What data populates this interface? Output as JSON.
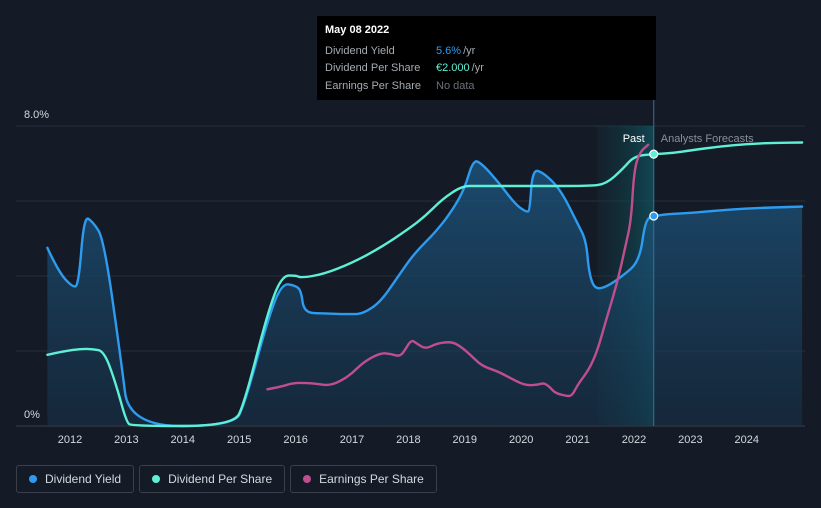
{
  "chart_data": {
    "type": "line",
    "y_axis": {
      "top_label": "8.0%",
      "bottom_label": "0%",
      "ylim": [
        0,
        8
      ]
    },
    "x_axis": {
      "ticks": [
        "2012",
        "2013",
        "2014",
        "2015",
        "2016",
        "2017",
        "2018",
        "2019",
        "2020",
        "2021",
        "2022",
        "2023",
        "2024"
      ]
    },
    "regions": {
      "past_label": "Past",
      "forecast_label": "Analysts Forecasts"
    },
    "series": [
      {
        "name": "Dividend Yield",
        "color": "#2d9cf0",
        "points": [
          [
            2011.6,
            4.75
          ],
          [
            2011.8,
            4.1
          ],
          [
            2012.05,
            3.7
          ],
          [
            2012.15,
            3.75
          ],
          [
            2012.25,
            5.6
          ],
          [
            2012.4,
            5.45
          ],
          [
            2012.6,
            5.0
          ],
          [
            2012.9,
            1.8
          ],
          [
            2013.05,
            0.0
          ],
          [
            2014.9,
            0.0
          ],
          [
            2015.1,
            0.6
          ],
          [
            2015.5,
            2.8
          ],
          [
            2015.75,
            3.8
          ],
          [
            2016.0,
            3.75
          ],
          [
            2016.1,
            3.6
          ],
          [
            2016.15,
            3.02
          ],
          [
            2016.5,
            3.0
          ],
          [
            2017.0,
            2.98
          ],
          [
            2017.2,
            3.0
          ],
          [
            2017.5,
            3.3
          ],
          [
            2017.8,
            3.95
          ],
          [
            2018.1,
            4.6
          ],
          [
            2018.5,
            5.2
          ],
          [
            2018.8,
            5.8
          ],
          [
            2019.0,
            6.35
          ],
          [
            2019.15,
            7.1
          ],
          [
            2019.3,
            7.0
          ],
          [
            2019.6,
            6.5
          ],
          [
            2019.9,
            5.9
          ],
          [
            2020.1,
            5.7
          ],
          [
            2020.15,
            5.75
          ],
          [
            2020.2,
            6.85
          ],
          [
            2020.4,
            6.75
          ],
          [
            2020.7,
            6.3
          ],
          [
            2021.0,
            5.4
          ],
          [
            2021.15,
            4.95
          ],
          [
            2021.2,
            4.1
          ],
          [
            2021.3,
            3.65
          ],
          [
            2021.5,
            3.7
          ],
          [
            2021.8,
            4.0
          ],
          [
            2022.1,
            4.4
          ],
          [
            2022.2,
            5.5
          ],
          [
            2022.35,
            5.6
          ],
          [
            2022.6,
            5.65
          ],
          [
            2023.0,
            5.68
          ],
          [
            2023.5,
            5.75
          ],
          [
            2024.0,
            5.8
          ],
          [
            2024.5,
            5.83
          ],
          [
            2024.98,
            5.85
          ]
        ],
        "fill": true
      },
      {
        "name": "Dividend Per Share",
        "color": "#5ef0d6",
        "points": [
          [
            2011.6,
            1.9
          ],
          [
            2011.9,
            2.0
          ],
          [
            2012.2,
            2.06
          ],
          [
            2012.4,
            2.05
          ],
          [
            2012.6,
            2.0
          ],
          [
            2012.8,
            1.2
          ],
          [
            2013.0,
            0.1
          ],
          [
            2013.1,
            0.0
          ],
          [
            2014.9,
            0.0
          ],
          [
            2015.1,
            0.65
          ],
          [
            2015.5,
            3.0
          ],
          [
            2015.75,
            4.0
          ],
          [
            2016.0,
            4.02
          ],
          [
            2016.1,
            3.95
          ],
          [
            2016.5,
            4.05
          ],
          [
            2017.0,
            4.35
          ],
          [
            2017.5,
            4.75
          ],
          [
            2018.0,
            5.25
          ],
          [
            2018.3,
            5.6
          ],
          [
            2018.6,
            6.05
          ],
          [
            2018.95,
            6.4
          ],
          [
            2019.2,
            6.4
          ],
          [
            2020.0,
            6.4
          ],
          [
            2020.5,
            6.4
          ],
          [
            2021.2,
            6.4
          ],
          [
            2021.5,
            6.45
          ],
          [
            2021.8,
            6.85
          ],
          [
            2022.0,
            7.2
          ],
          [
            2022.35,
            7.25
          ],
          [
            2022.7,
            7.28
          ],
          [
            2023.0,
            7.35
          ],
          [
            2023.5,
            7.45
          ],
          [
            2024.0,
            7.52
          ],
          [
            2024.5,
            7.55
          ],
          [
            2024.98,
            7.56
          ]
        ],
        "fill": false
      },
      {
        "name": "Earnings Per Share",
        "color": "#c04e8e",
        "points": [
          [
            2015.5,
            0.98
          ],
          [
            2015.75,
            1.05
          ],
          [
            2015.95,
            1.15
          ],
          [
            2016.2,
            1.15
          ],
          [
            2016.4,
            1.12
          ],
          [
            2016.6,
            1.08
          ],
          [
            2016.8,
            1.2
          ],
          [
            2017.0,
            1.4
          ],
          [
            2017.2,
            1.7
          ],
          [
            2017.5,
            1.95
          ],
          [
            2017.7,
            1.92
          ],
          [
            2017.85,
            1.85
          ],
          [
            2017.95,
            2.05
          ],
          [
            2018.05,
            2.3
          ],
          [
            2018.15,
            2.2
          ],
          [
            2018.3,
            2.05
          ],
          [
            2018.5,
            2.2
          ],
          [
            2018.75,
            2.25
          ],
          [
            2018.9,
            2.15
          ],
          [
            2019.1,
            1.9
          ],
          [
            2019.3,
            1.6
          ],
          [
            2019.6,
            1.45
          ],
          [
            2019.9,
            1.2
          ],
          [
            2020.1,
            1.08
          ],
          [
            2020.3,
            1.1
          ],
          [
            2020.4,
            1.15
          ],
          [
            2020.5,
            1.05
          ],
          [
            2020.6,
            0.88
          ],
          [
            2020.8,
            0.8
          ],
          [
            2020.9,
            0.8
          ],
          [
            2021.0,
            1.1
          ],
          [
            2021.2,
            1.5
          ],
          [
            2021.35,
            2.0
          ],
          [
            2021.5,
            2.8
          ],
          [
            2021.7,
            3.8
          ],
          [
            2021.85,
            4.8
          ],
          [
            2021.95,
            5.5
          ],
          [
            2022.0,
            6.8
          ],
          [
            2022.1,
            7.3
          ],
          [
            2022.25,
            7.5
          ]
        ],
        "fill": false
      }
    ],
    "highlight_date": 2022.35,
    "grid": true
  },
  "tooltip": {
    "date": "May 08 2022",
    "rows": [
      {
        "label": "Dividend Yield",
        "value": "5.6%",
        "unit": "/yr",
        "style": "blue"
      },
      {
        "label": "Dividend Per Share",
        "value": "€2.000",
        "unit": "/yr",
        "style": "teal"
      },
      {
        "label": "Earnings Per Share",
        "value": "No data",
        "unit": "",
        "style": "nodata"
      }
    ]
  },
  "legend": [
    {
      "label": "Dividend Yield",
      "color": "#2d9cf0"
    },
    {
      "label": "Dividend Per Share",
      "color": "#5ef0d6"
    },
    {
      "label": "Earnings Per Share",
      "color": "#c04e8e"
    }
  ]
}
